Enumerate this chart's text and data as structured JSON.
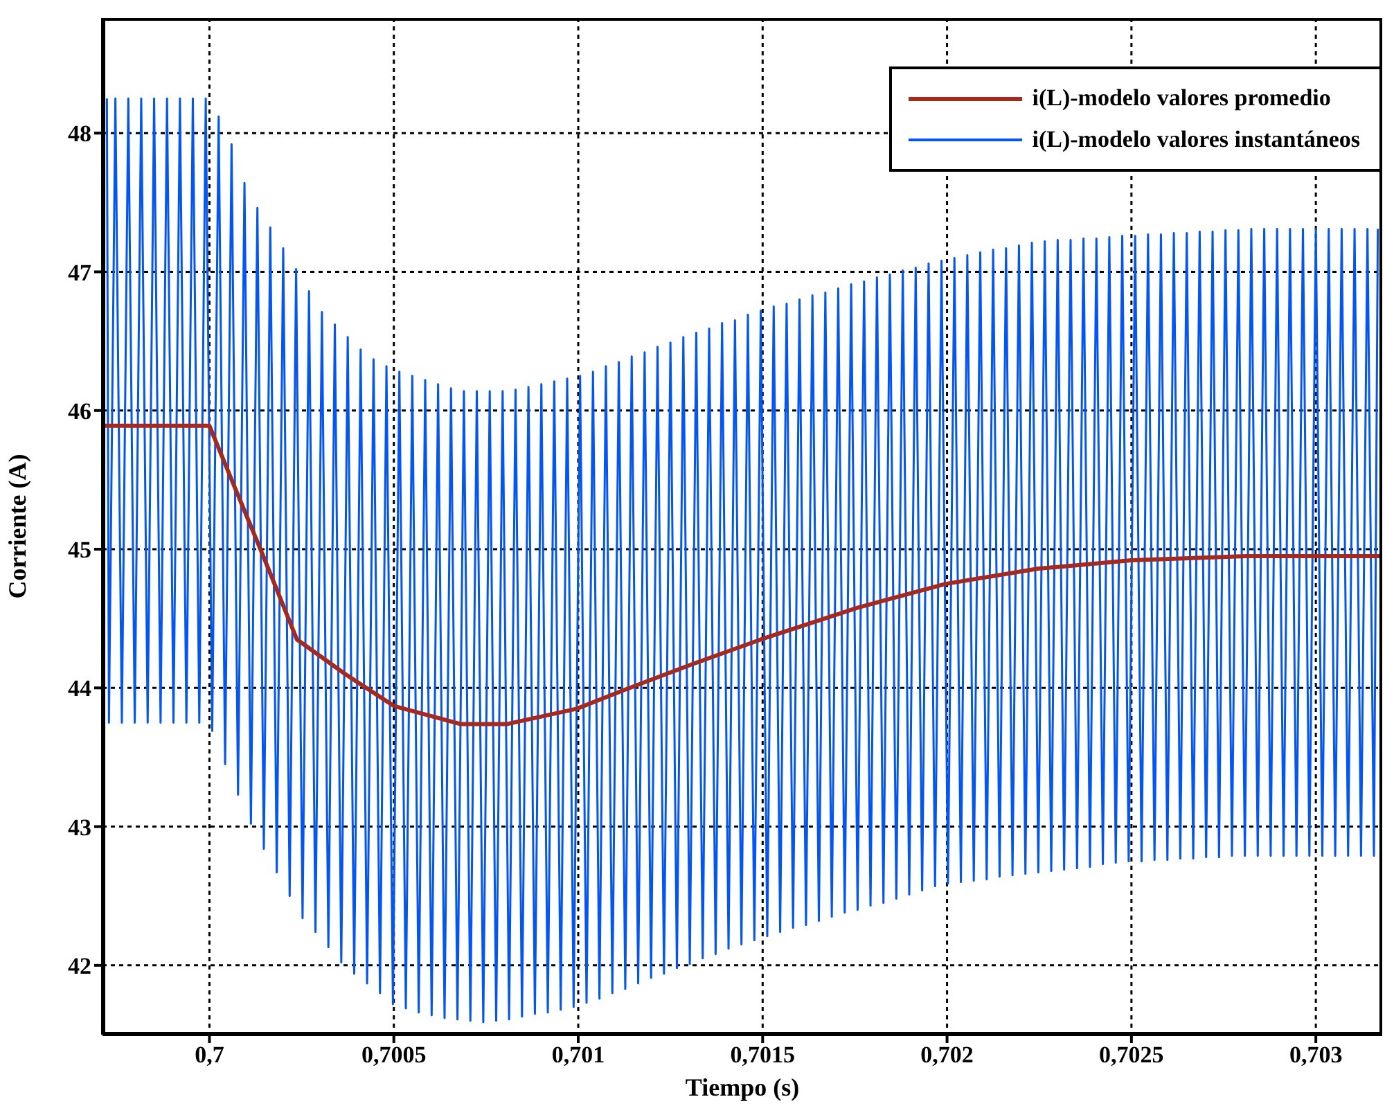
{
  "chart_data": {
    "type": "line",
    "xlabel": "Tiempo (s)",
    "ylabel": "Corriente (A)",
    "xlim": [
      0.69971,
      0.70318
    ],
    "ylim": [
      41.5,
      48.83
    ],
    "xticks": [
      {
        "value": 0.7,
        "label": "0,7"
      },
      {
        "value": 0.7005,
        "label": "0,7005"
      },
      {
        "value": 0.701,
        "label": "0,701"
      },
      {
        "value": 0.7015,
        "label": "0,7015"
      },
      {
        "value": 0.702,
        "label": "0,702"
      },
      {
        "value": 0.7025,
        "label": "0,7025"
      },
      {
        "value": 0.703,
        "label": "0,703"
      }
    ],
    "yticks": [
      42,
      43,
      44,
      45,
      46,
      47,
      48
    ],
    "grid": true,
    "legend": "top right",
    "series": [
      {
        "name": "i(L)-modelo valores promedio",
        "color": "#a52a1e",
        "x": [
          0.69971,
          0.7,
          0.700068,
          0.700143,
          0.700237,
          0.700368,
          0.7005,
          0.70068,
          0.700808,
          0.700996,
          0.70112,
          0.701308,
          0.701496,
          0.70176,
          0.701996,
          0.702248,
          0.7025,
          0.702812,
          0.70318
        ],
        "values": [
          45.89,
          45.89,
          45.45,
          44.97,
          44.35,
          44.1,
          43.87,
          43.74,
          43.74,
          43.85,
          43.98,
          44.17,
          44.35,
          44.58,
          44.75,
          44.86,
          44.92,
          44.95,
          44.95
        ]
      },
      {
        "name": "i(L)-modelo valores instantáneos",
        "color": "#0055ff",
        "x": [
          0.699722,
          0.6997275,
          0.699745,
          0.6997625,
          0.69978,
          0.6997975,
          0.699815,
          0.6998325,
          0.69985,
          0.6998675,
          0.699885,
          0.6999025,
          0.69992,
          0.6999375,
          0.699955,
          0.6999725,
          0.69999,
          0.7000075,
          0.700025,
          0.7000425,
          0.70006,
          0.7000775,
          0.700095,
          0.7001125,
          0.70013,
          0.7001475,
          0.700165,
          0.7001825,
          0.7002,
          0.7002175,
          0.700235,
          0.7002525,
          0.70027,
          0.7002875,
          0.700305,
          0.7003225,
          0.70034,
          0.7003575,
          0.700375,
          0.7003925,
          0.70041,
          0.7004275,
          0.700445,
          0.7004625,
          0.70048,
          0.7004975,
          0.700515,
          0.7005325,
          0.70055,
          0.7005675,
          0.700585,
          0.7006025,
          0.70062,
          0.7006375,
          0.700655,
          0.7006725,
          0.70069,
          0.7007075,
          0.700725,
          0.7007425,
          0.70076,
          0.7007775,
          0.700795,
          0.7008125,
          0.70083,
          0.7008475,
          0.700865,
          0.7008825,
          0.7009,
          0.7009175,
          0.700935,
          0.7009525,
          0.70097,
          0.7009875,
          0.701005,
          0.7010225,
          0.70104,
          0.7010575,
          0.701075,
          0.7010925,
          0.70111,
          0.7011275,
          0.701145,
          0.7011625,
          0.70118,
          0.7011975,
          0.701215,
          0.7012325,
          0.70125,
          0.7012675,
          0.701285,
          0.7013025,
          0.70132,
          0.7013375,
          0.701355,
          0.7013725,
          0.70139,
          0.7014075,
          0.701425,
          0.7014425,
          0.70146,
          0.7014775,
          0.701495,
          0.7015125,
          0.70153,
          0.7015475,
          0.701565,
          0.7015825,
          0.7016,
          0.7016175,
          0.701635,
          0.7016525,
          0.70167,
          0.7016875,
          0.701705,
          0.7017225,
          0.70174,
          0.7017575,
          0.701775,
          0.7017925,
          0.70181,
          0.7018275,
          0.701845,
          0.7018625,
          0.70188,
          0.7018975,
          0.701915,
          0.7019325,
          0.70195,
          0.7019675,
          0.701985,
          0.7020025,
          0.70202,
          0.7020375,
          0.702055,
          0.7020725,
          0.70209,
          0.7021075,
          0.702125,
          0.7021425,
          0.70216,
          0.7021775,
          0.702195,
          0.7022125,
          0.70223,
          0.7022475,
          0.702265,
          0.7022825,
          0.7023,
          0.7023175,
          0.702335,
          0.7023525,
          0.70237,
          0.7023875,
          0.702405,
          0.7024225,
          0.70244,
          0.7024575,
          0.702475,
          0.7024925,
          0.70251,
          0.7025275,
          0.702545,
          0.7025625,
          0.70258,
          0.7025975,
          0.702615,
          0.7026325,
          0.70265,
          0.7026675,
          0.702685,
          0.7027025,
          0.70272,
          0.7027375,
          0.702755,
          0.7027725,
          0.70279,
          0.7028075,
          0.702825,
          0.7028425,
          0.70286,
          0.7028775,
          0.702895,
          0.7029125,
          0.70293,
          0.7029475,
          0.702965,
          0.7029825,
          0.703,
          0.7030175,
          0.703035,
          0.7030525,
          0.70307,
          0.7030875,
          0.703105,
          0.7031225,
          0.70314,
          0.7031575,
          0.703168
        ],
        "values": [
          48.25,
          43.75,
          48.25,
          43.75,
          48.25,
          43.75,
          48.25,
          43.75,
          48.25,
          43.75,
          48.25,
          43.75,
          48.25,
          43.75,
          48.25,
          43.75,
          48.25,
          43.69,
          48.12,
          43.45,
          47.92,
          43.23,
          47.64,
          43.02,
          47.46,
          42.84,
          47.32,
          42.67,
          47.17,
          42.5,
          47.02,
          42.34,
          46.86,
          42.24,
          46.71,
          42.13,
          46.62,
          42.02,
          46.53,
          41.94,
          46.44,
          41.87,
          46.37,
          41.8,
          46.32,
          41.72,
          46.28,
          41.69,
          46.25,
          41.66,
          46.22,
          41.64,
          46.19,
          41.62,
          46.16,
          41.61,
          46.14,
          41.6,
          46.14,
          41.59,
          46.14,
          41.6,
          46.14,
          41.61,
          46.15,
          41.63,
          46.17,
          41.65,
          46.19,
          41.66,
          46.21,
          41.68,
          46.23,
          41.7,
          46.25,
          41.73,
          46.28,
          41.76,
          46.32,
          41.8,
          46.35,
          41.83,
          46.39,
          41.87,
          46.42,
          41.91,
          46.46,
          41.94,
          46.49,
          41.98,
          46.53,
          42.01,
          46.56,
          42.05,
          46.59,
          42.08,
          46.63,
          42.12,
          46.65,
          42.15,
          46.69,
          42.18,
          46.72,
          42.21,
          46.75,
          42.24,
          46.77,
          42.27,
          46.8,
          42.29,
          46.83,
          42.32,
          46.85,
          42.35,
          46.88,
          42.38,
          46.91,
          42.4,
          46.93,
          42.43,
          46.96,
          42.45,
          46.98,
          42.48,
          47.01,
          42.51,
          47.03,
          42.54,
          47.06,
          42.57,
          47.08,
          42.59,
          47.1,
          42.6,
          47.12,
          42.61,
          47.14,
          42.62,
          47.16,
          42.64,
          47.17,
          42.65,
          47.19,
          42.66,
          47.21,
          42.67,
          47.22,
          42.68,
          47.23,
          42.69,
          47.23,
          42.7,
          47.24,
          42.71,
          47.24,
          42.73,
          47.25,
          42.74,
          47.26,
          42.75,
          47.26,
          42.75,
          47.27,
          42.76,
          47.27,
          42.76,
          47.28,
          42.77,
          47.28,
          42.77,
          47.29,
          42.78,
          47.29,
          42.78,
          47.3,
          42.79,
          47.3,
          42.79,
          47.31,
          42.79,
          47.31,
          42.79,
          47.31,
          42.79,
          47.31,
          42.79,
          47.31,
          42.79,
          47.31,
          42.79,
          47.31,
          42.79,
          47.31,
          42.79,
          47.31,
          42.79,
          47.31,
          42.79,
          47.31
        ]
      }
    ]
  }
}
